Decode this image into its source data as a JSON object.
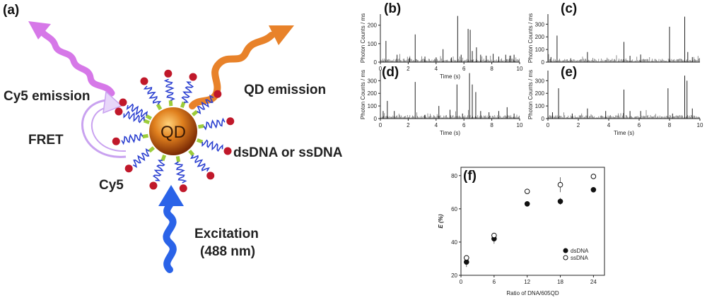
{
  "figure": {
    "panel_a": {
      "label": "(a)",
      "qd": "QD",
      "cy5_emission": "Cy5 emission",
      "qd_emission": "QD emission",
      "fret": "FRET",
      "dna": "dsDNA or ssDNA",
      "cy5": "Cy5",
      "excitation": "Excitation",
      "wavelength": "(488 nm)",
      "colors": {
        "qd": "#c95a10",
        "dna": "#2a3fd0",
        "dye": "#c0182a",
        "linker": "#9ccc3a",
        "cy5_arrow": "#d678e8",
        "qd_arrow": "#e8822a",
        "excitation_arrow": "#2a63e8"
      }
    }
  },
  "chart_data": [
    {
      "id": "b",
      "label": "(b)",
      "type": "line",
      "xlabel": "Time (s)",
      "ylabel": "Photon Counts / ms",
      "xlim": [
        0,
        10
      ],
      "ylim": [
        0,
        260
      ],
      "xticks": [
        0,
        2,
        4,
        6,
        8,
        10
      ],
      "yticks": [
        0,
        100,
        200
      ],
      "series": [
        {
          "x": [
            0.4,
            1.2,
            2.1,
            2.5,
            3.2,
            4.0,
            4.5,
            5.1,
            5.55,
            5.8,
            6.3,
            6.45,
            6.6,
            6.9,
            7.2,
            7.6,
            8.1,
            8.5,
            9.0,
            9.3,
            9.6
          ],
          "values": [
            115,
            40,
            25,
            150,
            30,
            25,
            70,
            25,
            250,
            40,
            180,
            175,
            60,
            80,
            40,
            35,
            45,
            30,
            40,
            35,
            40
          ]
        }
      ]
    },
    {
      "id": "c",
      "label": "(c)",
      "type": "line",
      "xlabel": "",
      "ylabel": "Photon Counts / ms",
      "xlim": [
        0,
        10
      ],
      "ylim": [
        0,
        380
      ],
      "xticks": [],
      "yticks": [
        0,
        100,
        200,
        300
      ],
      "series": [
        {
          "x": [
            0.2,
            0.6,
            1.5,
            2.6,
            5.0,
            5.4,
            6.1,
            8.0,
            9.0,
            9.2,
            9.5
          ],
          "values": [
            40,
            210,
            30,
            80,
            160,
            50,
            60,
            280,
            360,
            80,
            40
          ]
        }
      ]
    },
    {
      "id": "d",
      "label": "(d)",
      "type": "line",
      "xlabel": "Time (s)",
      "ylabel": "Photon Counts / ms",
      "xlim": [
        0,
        10
      ],
      "ylim": [
        0,
        380
      ],
      "xticks": [
        0,
        2,
        4,
        6,
        8,
        10
      ],
      "yticks": [
        0,
        100,
        200,
        300
      ],
      "series": [
        {
          "x": [
            0.2,
            0.5,
            1.0,
            2.5,
            3.2,
            4.2,
            5.0,
            5.5,
            5.9,
            6.4,
            6.6,
            6.85,
            7.2,
            7.8,
            8.5,
            9.1,
            9.6
          ],
          "values": [
            60,
            140,
            60,
            290,
            30,
            100,
            70,
            270,
            40,
            360,
            270,
            210,
            60,
            50,
            60,
            90,
            40
          ]
        }
      ]
    },
    {
      "id": "e",
      "label": "(e)",
      "type": "line",
      "xlabel": "Time (s)",
      "ylabel": "Photon Counts / ms",
      "xlim": [
        0,
        10
      ],
      "ylim": [
        0,
        380
      ],
      "xticks": [
        0,
        2,
        4,
        6,
        8,
        10
      ],
      "yticks": [
        0,
        100,
        200,
        300
      ],
      "series": [
        {
          "x": [
            0.3,
            0.7,
            1.6,
            2.6,
            3.8,
            5.0,
            5.4,
            6.1,
            7.9,
            8.2,
            9.0,
            9.15,
            9.5
          ],
          "values": [
            50,
            240,
            40,
            80,
            60,
            230,
            60,
            60,
            240,
            40,
            340,
            300,
            80
          ]
        }
      ]
    },
    {
      "id": "f",
      "label": "(f)",
      "type": "scatter",
      "xlabel": "Ratio of DNA/605QD",
      "ylabel": "E (%)",
      "xlim": [
        0,
        26
      ],
      "ylim": [
        20,
        85
      ],
      "xticks": [
        0,
        6,
        12,
        18,
        24
      ],
      "yticks": [
        20,
        40,
        60,
        80
      ],
      "legend": "bottom-right",
      "series": [
        {
          "name": "dsDNA",
          "marker": "filled",
          "x": [
            1,
            6,
            12,
            18,
            24
          ],
          "values": [
            28,
            42,
            63,
            64.5,
            71.5
          ],
          "errors": [
            3,
            3,
            1,
            2,
            1
          ]
        },
        {
          "name": "ssDNA",
          "marker": "open",
          "x": [
            1,
            6,
            12,
            18,
            24
          ],
          "values": [
            30.5,
            44,
            70.5,
            74.5,
            79.5
          ],
          "errors": [
            1.5,
            1.5,
            1.5,
            4.5,
            1.5
          ]
        }
      ]
    }
  ]
}
